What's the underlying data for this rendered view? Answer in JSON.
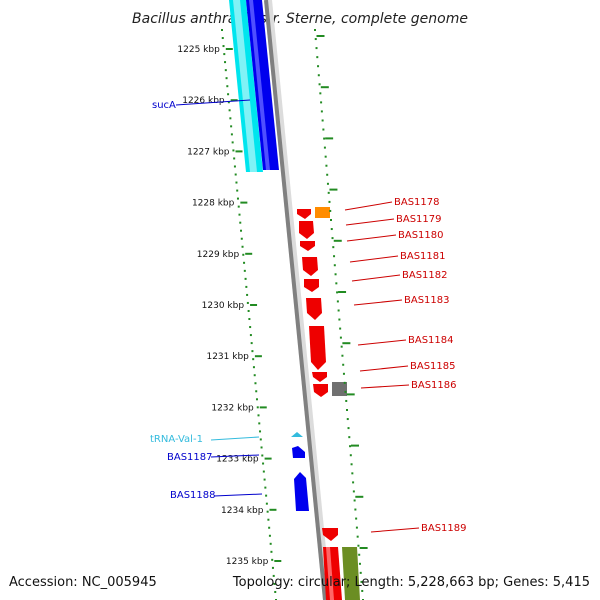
{
  "title": "Bacillus anthracis str. Sterne, complete genome",
  "footer": {
    "accession": "Accession: NC_005945",
    "topology": "Topology: circular; Length: 5,228,663 bp; Genes: 5,415"
  },
  "ticks": [
    "1225 kbp",
    "1226 kbp",
    "1227 kbp",
    "1228 kbp",
    "1229 kbp",
    "1230 kbp",
    "1231 kbp",
    "1232 kbp",
    "1233 kbp",
    "1234 kbp",
    "1235 kbp"
  ],
  "colors": {
    "forward": "#0000ee",
    "reverse": "#ee0000",
    "trna": "#33bbdd",
    "cyan": "#00e5ee",
    "orange": "#ff8c00",
    "gray": "#707070",
    "olive": "#6b8e23",
    "backbone": "#808080",
    "ruler": "#228b22",
    "blue_label": "#0000cc",
    "red_label": "#cc0000",
    "trna_label": "#33bbdd"
  },
  "labels": [
    {
      "text": "sucA",
      "color": "blue_label"
    },
    {
      "text": "tRNA-Val-1",
      "color": "trna_label"
    },
    {
      "text": "BAS1187",
      "color": "blue_label"
    },
    {
      "text": "BAS1188",
      "color": "blue_label"
    },
    {
      "text": "BAS1178",
      "color": "red_label"
    },
    {
      "text": "BAS1179",
      "color": "red_label"
    },
    {
      "text": "BAS1180",
      "color": "red_label"
    },
    {
      "text": "BAS1181",
      "color": "red_label"
    },
    {
      "text": "BAS1182",
      "color": "red_label"
    },
    {
      "text": "BAS1183",
      "color": "red_label"
    },
    {
      "text": "BAS1184",
      "color": "red_label"
    },
    {
      "text": "BAS1185",
      "color": "red_label"
    },
    {
      "text": "BAS1186",
      "color": "red_label"
    },
    {
      "text": "BAS1189",
      "color": "red_label"
    }
  ]
}
